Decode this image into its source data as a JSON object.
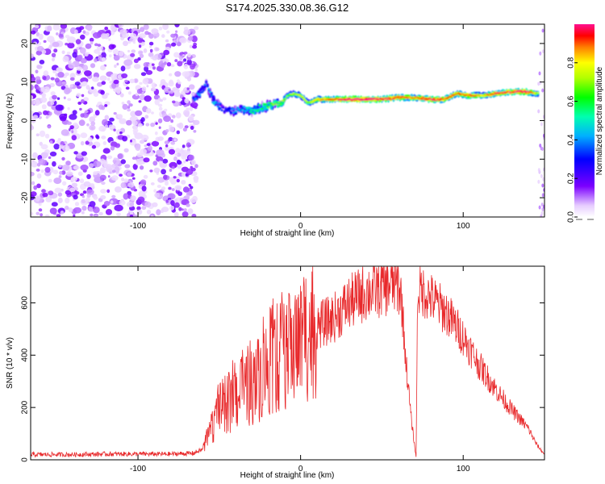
{
  "title": "S174.2025.330.08.36.G12",
  "chart_data": [
    {
      "type": "heatmap",
      "title": "S174.2025.330.08.36.G12",
      "xlabel": "Height of straight line (km)",
      "ylabel": "Frequency (Hz)",
      "xlim": [
        -166,
        150
      ],
      "ylim": [
        -25,
        25
      ],
      "xticks": [
        -100,
        0,
        100
      ],
      "yticks": [
        -20,
        -10,
        0,
        10,
        20
      ],
      "colorbar": {
        "label": "Normalized spectral amplitude",
        "range": [
          0.0,
          1.0
        ],
        "ticks": [
          0.0,
          0.2,
          0.4,
          0.6,
          0.8
        ]
      },
      "noise_region_x": [
        -166,
        -64
      ],
      "ridge": [
        {
          "x": -66,
          "f": 5.5,
          "a": 0.25
        },
        {
          "x": -62,
          "f": 7.0,
          "a": 0.3
        },
        {
          "x": -58,
          "f": 9.5,
          "a": 0.2
        },
        {
          "x": -54,
          "f": 5.5,
          "a": 0.3
        },
        {
          "x": -48,
          "f": 3.0,
          "a": 0.2
        },
        {
          "x": -42,
          "f": 2.5,
          "a": 0.25
        },
        {
          "x": -36,
          "f": 3.0,
          "a": 0.3
        },
        {
          "x": -30,
          "f": 2.5,
          "a": 0.4
        },
        {
          "x": -24,
          "f": 3.5,
          "a": 0.45
        },
        {
          "x": -18,
          "f": 4.0,
          "a": 0.55
        },
        {
          "x": -12,
          "f": 4.5,
          "a": 0.6
        },
        {
          "x": -8,
          "f": 6.5,
          "a": 0.55
        },
        {
          "x": -4,
          "f": 7.0,
          "a": 0.6
        },
        {
          "x": 0,
          "f": 6.5,
          "a": 0.65
        },
        {
          "x": 5,
          "f": 4.5,
          "a": 0.6
        },
        {
          "x": 10,
          "f": 5.5,
          "a": 0.7
        },
        {
          "x": 20,
          "f": 5.5,
          "a": 0.8
        },
        {
          "x": 30,
          "f": 5.5,
          "a": 0.9
        },
        {
          "x": 40,
          "f": 5.5,
          "a": 0.9
        },
        {
          "x": 50,
          "f": 5.5,
          "a": 0.85
        },
        {
          "x": 60,
          "f": 6.0,
          "a": 0.8
        },
        {
          "x": 70,
          "f": 6.0,
          "a": 0.75
        },
        {
          "x": 80,
          "f": 5.5,
          "a": 0.85
        },
        {
          "x": 88,
          "f": 5.5,
          "a": 0.8
        },
        {
          "x": 96,
          "f": 7.0,
          "a": 0.75
        },
        {
          "x": 104,
          "f": 6.5,
          "a": 0.8
        },
        {
          "x": 112,
          "f": 6.5,
          "a": 0.7
        },
        {
          "x": 120,
          "f": 7.0,
          "a": 0.8
        },
        {
          "x": 130,
          "f": 7.5,
          "a": 0.85
        },
        {
          "x": 138,
          "f": 7.5,
          "a": 0.9
        },
        {
          "x": 146,
          "f": 7.0,
          "a": 0.6
        }
      ]
    },
    {
      "type": "line",
      "xlabel": "Height of straight line (km)",
      "ylabel": "SNR (10 * v/v)",
      "xlim": [
        -166,
        150
      ],
      "ylim": [
        0,
        740
      ],
      "xticks": [
        -100,
        0,
        100
      ],
      "yticks": [
        0,
        200,
        400,
        600
      ],
      "series": [
        {
          "name": "SNR",
          "color": "#e8292b",
          "x": [
            -166,
            -140,
            -120,
            -100,
            -80,
            -66,
            -60,
            -55,
            -50,
            -40,
            -30,
            -20,
            -10,
            0,
            10,
            20,
            30,
            40,
            50,
            55,
            60,
            62,
            65,
            68,
            70,
            71,
            72,
            73,
            76,
            80,
            90,
            100,
            110,
            120,
            130,
            140,
            145,
            150
          ],
          "y": [
            20,
            20,
            22,
            22,
            22,
            25,
            40,
            120,
            190,
            240,
            280,
            360,
            400,
            450,
            510,
            540,
            600,
            640,
            660,
            670,
            670,
            620,
            360,
            160,
            60,
            10,
            640,
            650,
            640,
            620,
            560,
            470,
            360,
            270,
            190,
            120,
            60,
            20
          ]
        }
      ]
    }
  ]
}
